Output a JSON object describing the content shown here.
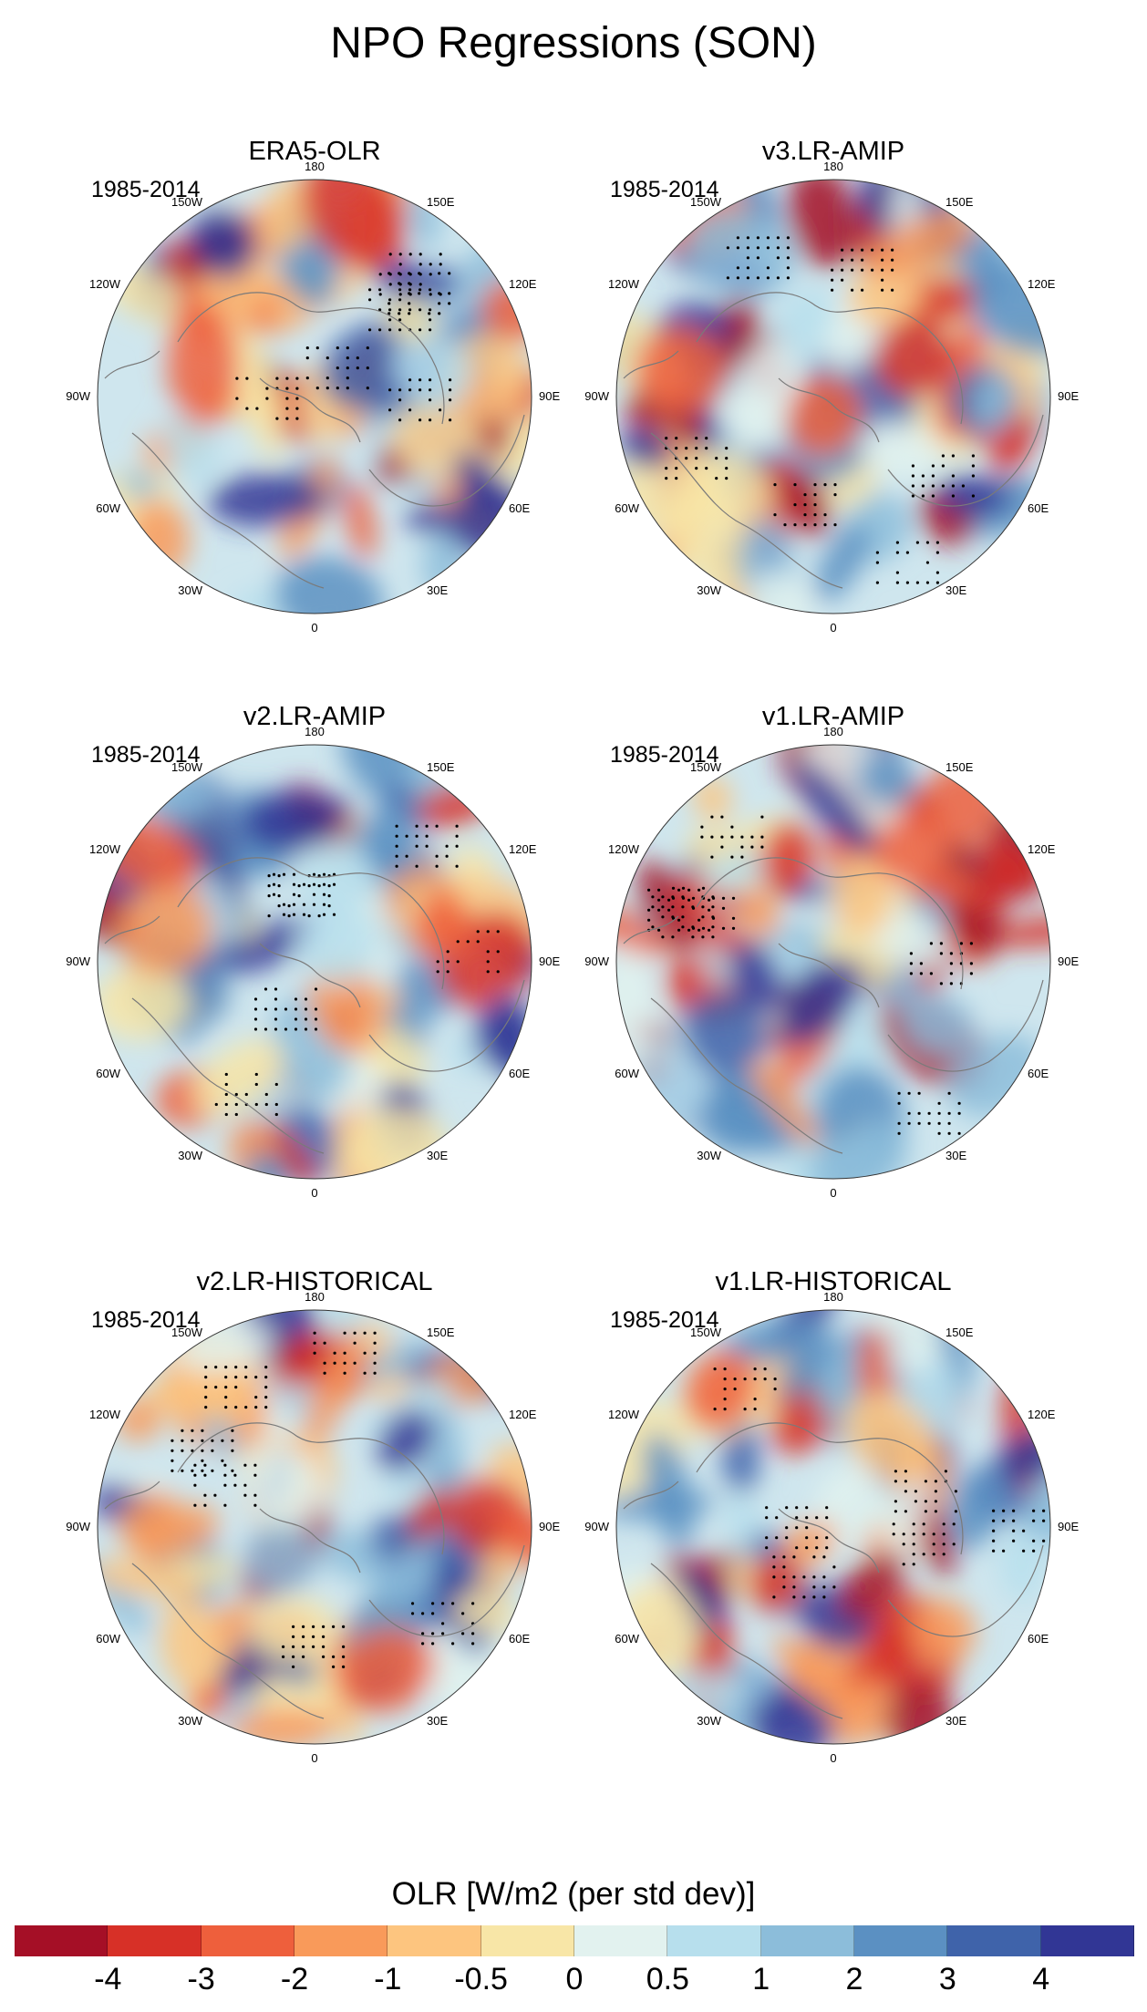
{
  "title": "NPO Regressions (SON)",
  "panels": [
    {
      "title": "ERA5-OLR",
      "period": "1985-2014"
    },
    {
      "title": "v3.LR-AMIP",
      "period": "1985-2014"
    },
    {
      "title": "v2.LR-AMIP",
      "period": "1985-2014"
    },
    {
      "title": "v1.LR-AMIP",
      "period": "1985-2014"
    },
    {
      "title": "v2.LR-HISTORICAL",
      "period": "1985-2014"
    },
    {
      "title": "v1.LR-HISTORICAL",
      "period": "1985-2014"
    }
  ],
  "longitude_labels": {
    "l180": "180",
    "l150e": "150E",
    "l120e": "120E",
    "l90e": "90E",
    "l60e": "60E",
    "l30e": "30E",
    "l0": "0",
    "l30w": "30W",
    "l60w": "60W",
    "l90w": "90W",
    "l120w": "120W",
    "l150w": "150W"
  },
  "colorbar": {
    "title": "OLR [W/m2 (per std dev)]",
    "colors": [
      "#a50f26",
      "#d73027",
      "#ee5f3c",
      "#f99a5a",
      "#fdc57f",
      "#f8e6a7",
      "#e2f2ef",
      "#b7dfed",
      "#8cbdda",
      "#5b90c2",
      "#3f63aa",
      "#313695"
    ],
    "ticks": [
      "-4",
      "-3",
      "-2",
      "-1",
      "-0.5",
      "0",
      "0.5",
      "1",
      "2",
      "3",
      "4"
    ]
  },
  "map_style": {
    "ocean_base": "#cfe6ee",
    "coast": "#7a7a7a",
    "stipple": "#000000"
  }
}
